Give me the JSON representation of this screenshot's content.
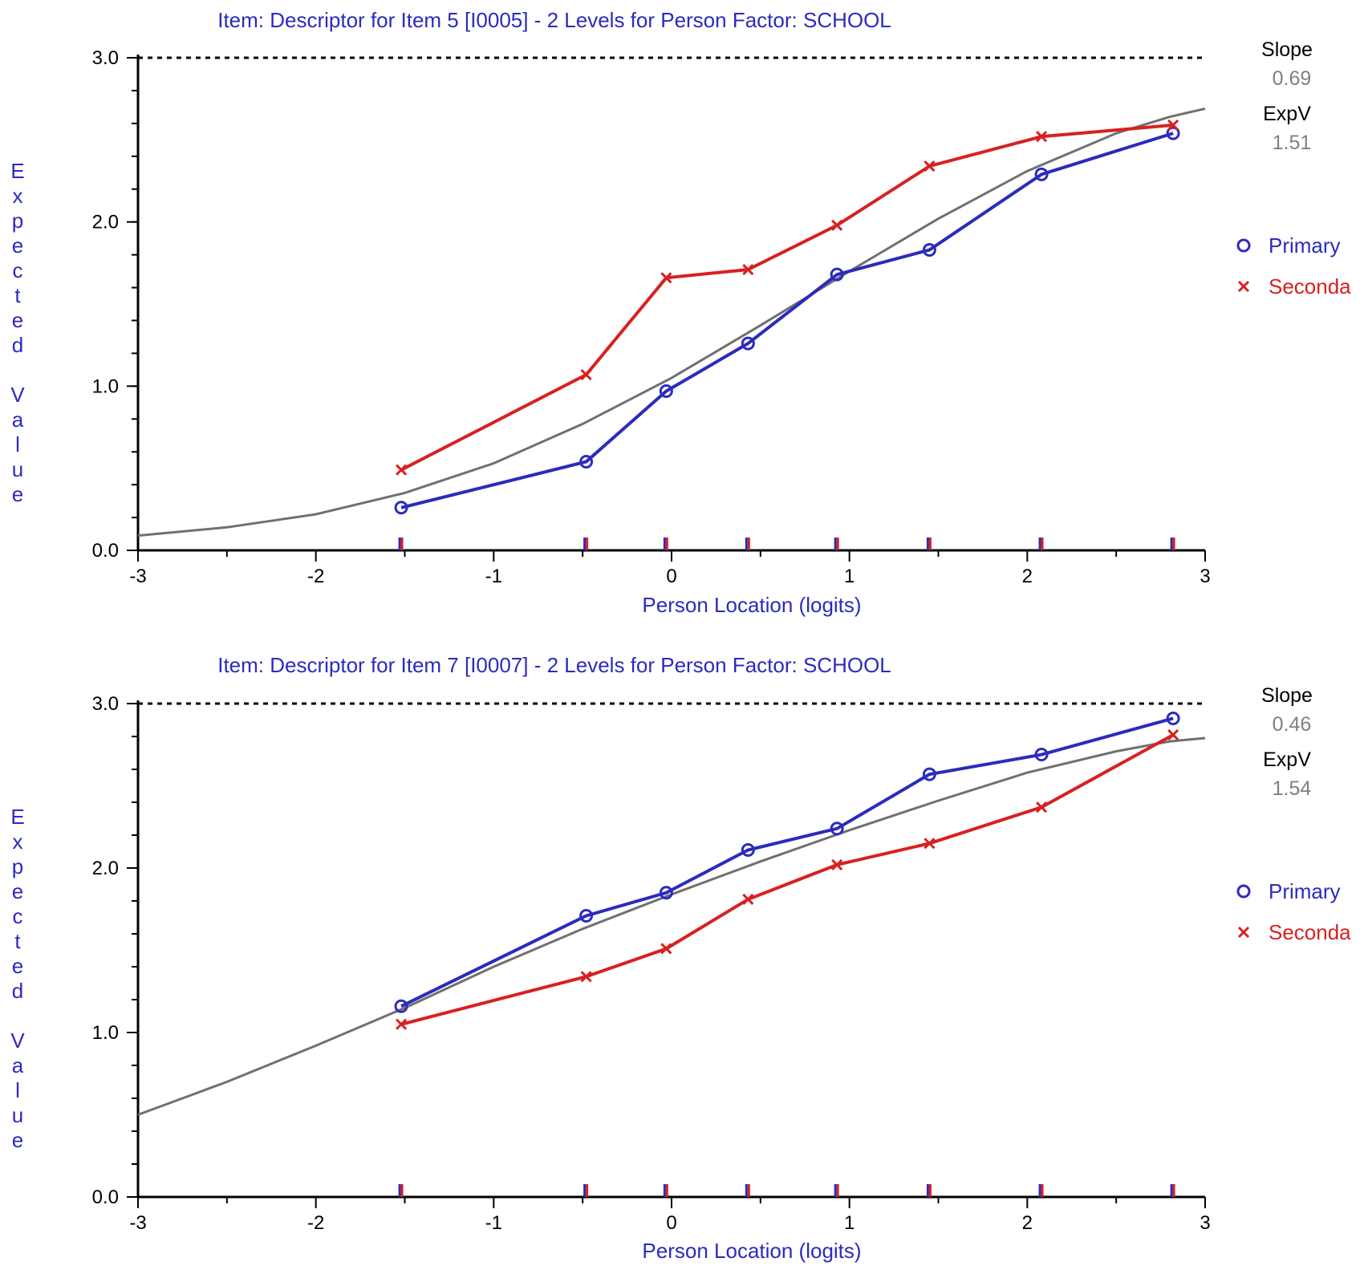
{
  "colors": {
    "primary": "#2b2bbd",
    "secondary": "#d82020",
    "expected": "#707070",
    "axis": "#000000",
    "label": "#2b2bbd"
  },
  "chart_data": [
    {
      "type": "line",
      "title": "Item: Descriptor for Item 5 [I0005] - 2 Levels for Person Factor: SCHOOL",
      "xlabel": "Person Location (logits)",
      "ylabel": "Expected Value",
      "xlim": [
        -3,
        3
      ],
      "ylim": [
        0,
        3
      ],
      "xticks": [
        "-3",
        "-2",
        "-1",
        "0",
        "1",
        "2",
        "3"
      ],
      "yticks": [
        "0.0",
        "1.0",
        "2.0",
        "3.0"
      ],
      "max_line": 3.0,
      "slope_label": "Slope",
      "slope_value": "0.69",
      "expv_label": "ExpV",
      "expv_value": "1.51",
      "expected_curve": {
        "x": [
          -3,
          -2.5,
          -2,
          -1.5,
          -1,
          -0.5,
          0,
          0.5,
          1,
          1.5,
          2,
          2.5,
          2.8,
          3
        ],
        "y": [
          0.09,
          0.14,
          0.22,
          0.35,
          0.53,
          0.77,
          1.05,
          1.37,
          1.7,
          2.02,
          2.31,
          2.54,
          2.64,
          2.69
        ]
      },
      "class_intervals": [
        -1.52,
        -0.48,
        -0.03,
        0.43,
        0.93,
        1.45,
        2.08,
        2.82
      ],
      "series": [
        {
          "name": "Primary",
          "marker": "o",
          "x": [
            -1.52,
            -0.48,
            -0.03,
            0.43,
            0.93,
            1.45,
            2.08,
            2.82
          ],
          "y": [
            0.26,
            0.54,
            0.97,
            1.26,
            1.68,
            1.83,
            2.29,
            2.54
          ]
        },
        {
          "name": "Seconda",
          "marker": "x",
          "x": [
            -1.52,
            -0.48,
            -0.03,
            0.43,
            0.93,
            1.45,
            2.08,
            2.82
          ],
          "y": [
            0.49,
            1.07,
            1.66,
            1.71,
            1.98,
            2.34,
            2.52,
            2.59
          ]
        }
      ]
    },
    {
      "type": "line",
      "title": "Item: Descriptor for Item 7 [I0007] - 2 Levels for Person Factor: SCHOOL",
      "xlabel": "Person Location (logits)",
      "ylabel": "Expected Value",
      "xlim": [
        -3,
        3
      ],
      "ylim": [
        0,
        3
      ],
      "xticks": [
        "-3",
        "-2",
        "-1",
        "0",
        "1",
        "2",
        "3"
      ],
      "yticks": [
        "0.0",
        "1.0",
        "2.0",
        "3.0"
      ],
      "max_line": 3.0,
      "slope_label": "Slope",
      "slope_value": "0.46",
      "expv_label": "ExpV",
      "expv_value": "1.54",
      "expected_curve": {
        "x": [
          -3,
          -2.5,
          -2,
          -1.5,
          -1,
          -0.5,
          0,
          0.5,
          1,
          1.5,
          2,
          2.5,
          2.8,
          3
        ],
        "y": [
          0.5,
          0.7,
          0.92,
          1.15,
          1.4,
          1.63,
          1.84,
          2.04,
          2.23,
          2.41,
          2.58,
          2.71,
          2.77,
          2.79
        ]
      },
      "class_intervals": [
        -1.52,
        -0.48,
        -0.03,
        0.43,
        0.93,
        1.45,
        2.08,
        2.82
      ],
      "series": [
        {
          "name": "Primary",
          "marker": "o",
          "x": [
            -1.52,
            -0.48,
            -0.03,
            0.43,
            0.93,
            1.45,
            2.08,
            2.82
          ],
          "y": [
            1.16,
            1.71,
            1.85,
            2.11,
            2.24,
            2.57,
            2.69,
            2.91
          ]
        },
        {
          "name": "Seconda",
          "marker": "x",
          "x": [
            -1.52,
            -0.48,
            -0.03,
            0.43,
            0.93,
            1.45,
            2.08,
            2.82
          ],
          "y": [
            1.05,
            1.34,
            1.51,
            1.81,
            2.02,
            2.15,
            2.37,
            2.81
          ]
        }
      ]
    }
  ]
}
